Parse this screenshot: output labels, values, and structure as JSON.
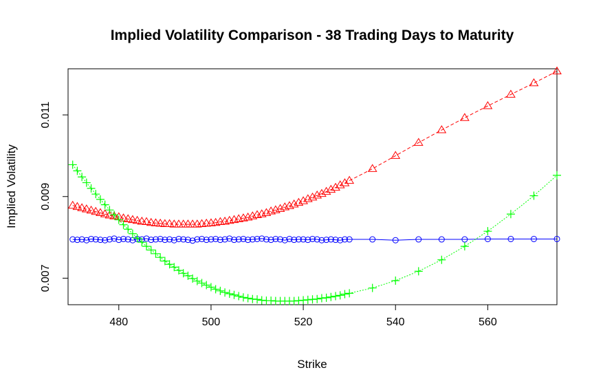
{
  "chart_data": {
    "type": "line",
    "title": "Implied Volatility Comparison - 38 Trading Days to Maturity",
    "xlabel": "Strike",
    "ylabel": "Implied Volatility",
    "xlim": [
      469,
      575
    ],
    "ylim": [
      0.00635,
      0.01213
    ],
    "x_ticks": [
      480,
      500,
      520,
      540,
      560
    ],
    "x_tick_labels": [
      "480",
      "500",
      "520",
      "540",
      "560"
    ],
    "y_ticks": [
      0.007,
      0.009,
      0.011
    ],
    "y_tick_labels": [
      "0.007",
      "0.009",
      "0.011"
    ],
    "grid": false,
    "legend": null,
    "strikes": [
      470,
      471,
      472,
      473,
      474,
      475,
      476,
      477,
      478,
      479,
      480,
      481,
      482,
      483,
      484,
      485,
      486,
      487,
      488,
      489,
      490,
      491,
      492,
      493,
      494,
      495,
      496,
      497,
      498,
      499,
      500,
      501,
      502,
      503,
      504,
      505,
      506,
      507,
      508,
      509,
      510,
      511,
      512,
      513,
      514,
      515,
      516,
      517,
      518,
      519,
      520,
      521,
      522,
      523,
      524,
      525,
      526,
      527,
      528,
      529,
      530,
      535,
      540,
      545,
      550,
      555,
      560,
      565,
      570,
      575
    ],
    "series": [
      {
        "name": "blue-circle-series",
        "color": "#0000ff",
        "marker": "circle",
        "line_style": "solid",
        "values": [
          0.00795,
          0.00794,
          0.00795,
          0.00793,
          0.00796,
          0.00795,
          0.00794,
          0.00793,
          0.00795,
          0.00797,
          0.00794,
          0.00796,
          0.00795,
          0.00793,
          0.00796,
          0.00795,
          0.00797,
          0.00794,
          0.00795,
          0.00796,
          0.00794,
          0.00795,
          0.00793,
          0.00796,
          0.00795,
          0.00794,
          0.00792,
          0.00795,
          0.00796,
          0.00794,
          0.00795,
          0.00796,
          0.00794,
          0.00795,
          0.00797,
          0.00794,
          0.00795,
          0.00796,
          0.00794,
          0.00795,
          0.00796,
          0.00797,
          0.00795,
          0.00794,
          0.00796,
          0.00795,
          0.00793,
          0.00796,
          0.00794,
          0.00795,
          0.00795,
          0.00794,
          0.00796,
          0.00795,
          0.00793,
          0.00794,
          0.00795,
          0.00794,
          0.00793,
          0.00795,
          0.00795,
          0.00795,
          0.00793,
          0.00795,
          0.00795,
          0.00795,
          0.00796,
          0.00796,
          0.00796,
          0.00796
        ]
      },
      {
        "name": "red-triangle-series",
        "color": "#ff0000",
        "marker": "triangle",
        "line_style": "dashed",
        "values": [
          0.00878,
          0.00875,
          0.00872,
          0.00869,
          0.00866,
          0.00863,
          0.0086,
          0.00857,
          0.00854,
          0.00852,
          0.0085,
          0.00847,
          0.00845,
          0.00843,
          0.00841,
          0.00839,
          0.00838,
          0.00836,
          0.00835,
          0.00834,
          0.00833,
          0.00833,
          0.00832,
          0.00832,
          0.00832,
          0.00832,
          0.00832,
          0.00832,
          0.00833,
          0.00834,
          0.00835,
          0.00836,
          0.00838,
          0.00839,
          0.00841,
          0.00843,
          0.00845,
          0.00847,
          0.00849,
          0.00852,
          0.00855,
          0.00857,
          0.0086,
          0.00864,
          0.00867,
          0.0087,
          0.00874,
          0.00877,
          0.00881,
          0.00885,
          0.00889,
          0.00894,
          0.00898,
          0.00903,
          0.00907,
          0.00912,
          0.00917,
          0.00922,
          0.00928,
          0.00933,
          0.00939,
          0.00968,
          0.01,
          0.01032,
          0.01063,
          0.01093,
          0.01122,
          0.0115,
          0.01178,
          0.01207
        ]
      },
      {
        "name": "green-plus-series",
        "color": "#00ff00",
        "marker": "plus",
        "line_style": "dotted",
        "values": [
          0.00978,
          0.00963,
          0.00948,
          0.00934,
          0.0092,
          0.00906,
          0.00893,
          0.0088,
          0.00867,
          0.00855,
          0.00843,
          0.00831,
          0.0082,
          0.00809,
          0.00798,
          0.00788,
          0.00778,
          0.00769,
          0.0076,
          0.00751,
          0.00742,
          0.00734,
          0.00727,
          0.00719,
          0.00712,
          0.00706,
          0.00699,
          0.00693,
          0.00688,
          0.00683,
          0.00678,
          0.00673,
          0.00669,
          0.00665,
          0.00662,
          0.00659,
          0.00656,
          0.00653,
          0.00651,
          0.00649,
          0.00648,
          0.00646,
          0.00645,
          0.00645,
          0.00644,
          0.00644,
          0.00644,
          0.00644,
          0.00644,
          0.00645,
          0.00646,
          0.00647,
          0.00648,
          0.00649,
          0.00651,
          0.00652,
          0.00654,
          0.00656,
          0.00658,
          0.00661,
          0.00663,
          0.00676,
          0.00694,
          0.00717,
          0.00745,
          0.00778,
          0.00815,
          0.00857,
          0.00902,
          0.00952
        ]
      }
    ]
  }
}
